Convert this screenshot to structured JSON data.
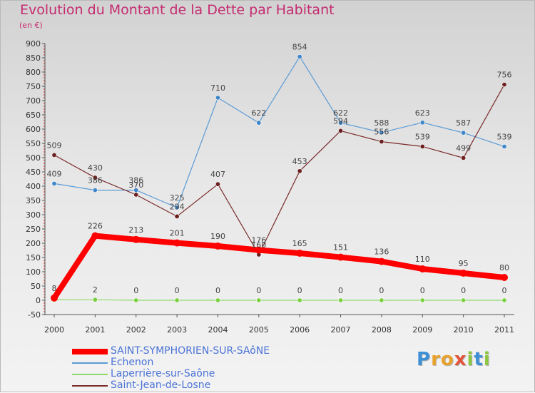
{
  "title": "Evolution du Montant de la Dette par Habitant",
  "subtitle": "(en €)",
  "logo": {
    "letters": [
      {
        "ch": "P",
        "color": "#3d8fd6"
      },
      {
        "ch": "r",
        "color": "#e8a12a"
      },
      {
        "ch": "o",
        "color": "#e8a12a"
      },
      {
        "ch": "x",
        "color": "#e2543a"
      },
      {
        "ch": "i",
        "color": "#8dc63f"
      },
      {
        "ch": "t",
        "color": "#3d8fd6"
      },
      {
        "ch": "i",
        "color": "#8dc63f"
      }
    ]
  },
  "chart_data": {
    "type": "line",
    "title": "Evolution du Montant de la Dette par Habitant",
    "subtitle": "(en €)",
    "xlabel": "",
    "ylabel": "",
    "x": [
      "2000",
      "2001",
      "2002",
      "2003",
      "2004",
      "2005",
      "2006",
      "2007",
      "2008",
      "2009",
      "2010",
      "2011"
    ],
    "ylim": [
      -50,
      900
    ],
    "yticks": [
      -50,
      0,
      50,
      100,
      150,
      200,
      250,
      300,
      350,
      400,
      450,
      500,
      550,
      600,
      650,
      700,
      750,
      800,
      850,
      900
    ],
    "grid": false,
    "legend": "bottom-left",
    "series": [
      {
        "name": "SAINT-SYMPHORIEN-SUR-SAôNE",
        "color": "#ff0000",
        "width": 8,
        "dot": "#ff0000",
        "values": [
          8,
          226,
          213,
          201,
          190,
          176,
          165,
          151,
          136,
          110,
          95,
          80
        ]
      },
      {
        "name": "Echenon",
        "color": "#5b9bd5",
        "width": 1.2,
        "dot": "#3f86c8",
        "values": [
          409,
          386,
          386,
          325,
          710,
          622,
          854,
          622,
          588,
          623,
          587,
          539
        ]
      },
      {
        "name": "Laperrière-sur-Saône",
        "color": "#8fdc6a",
        "width": 1.2,
        "dot": "#7bd040",
        "values": [
          2,
          2,
          0,
          0,
          0,
          0,
          0,
          0,
          0,
          0,
          0,
          0
        ]
      },
      {
        "name": "Saint-Jean-de-Losne",
        "color": "#7a2a2a",
        "width": 1.2,
        "dot": "#6b1f1f",
        "values": [
          509,
          430,
          370,
          294,
          407,
          160,
          453,
          594,
          556,
          539,
          499,
          756
        ]
      }
    ],
    "labels": [
      {
        "series": 1,
        "i": 0,
        "text": "409",
        "pos": "above"
      },
      {
        "series": 1,
        "i": 1,
        "text": "386",
        "pos": "above"
      },
      {
        "series": 1,
        "i": 2,
        "text": "386",
        "pos": "above"
      },
      {
        "series": 1,
        "i": 3,
        "text": "325",
        "pos": "above"
      },
      {
        "series": 1,
        "i": 4,
        "text": "710",
        "pos": "above"
      },
      {
        "series": 1,
        "i": 5,
        "text": "622",
        "pos": "above"
      },
      {
        "series": 1,
        "i": 6,
        "text": "854",
        "pos": "above"
      },
      {
        "series": 1,
        "i": 7,
        "text": "622",
        "pos": "above"
      },
      {
        "series": 1,
        "i": 8,
        "text": "588",
        "pos": "above"
      },
      {
        "series": 1,
        "i": 9,
        "text": "623",
        "pos": "above"
      },
      {
        "series": 1,
        "i": 10,
        "text": "587",
        "pos": "above"
      },
      {
        "series": 1,
        "i": 11,
        "text": "539",
        "pos": "above"
      },
      {
        "series": 3,
        "i": 0,
        "text": "509",
        "pos": "above"
      },
      {
        "series": 3,
        "i": 1,
        "text": "430",
        "pos": "above"
      },
      {
        "series": 3,
        "i": 2,
        "text": "370",
        "pos": "above"
      },
      {
        "series": 3,
        "i": 3,
        "text": "294",
        "pos": "above"
      },
      {
        "series": 3,
        "i": 4,
        "text": "407",
        "pos": "above"
      },
      {
        "series": 3,
        "i": 5,
        "text": "160",
        "pos": "above"
      },
      {
        "series": 3,
        "i": 6,
        "text": "453",
        "pos": "above"
      },
      {
        "series": 3,
        "i": 7,
        "text": "594",
        "pos": "above"
      },
      {
        "series": 3,
        "i": 8,
        "text": "556",
        "pos": "above"
      },
      {
        "series": 3,
        "i": 9,
        "text": "539",
        "pos": "above"
      },
      {
        "series": 3,
        "i": 10,
        "text": "499",
        "pos": "above"
      },
      {
        "series": 3,
        "i": 11,
        "text": "756",
        "pos": "above"
      },
      {
        "series": 0,
        "i": 0,
        "text": "8",
        "pos": "above"
      },
      {
        "series": 0,
        "i": 1,
        "text": "226",
        "pos": "above"
      },
      {
        "series": 0,
        "i": 2,
        "text": "213",
        "pos": "above"
      },
      {
        "series": 0,
        "i": 3,
        "text": "201",
        "pos": "above"
      },
      {
        "series": 0,
        "i": 4,
        "text": "190",
        "pos": "above"
      },
      {
        "series": 0,
        "i": 5,
        "text": "176",
        "pos": "above"
      },
      {
        "series": 0,
        "i": 6,
        "text": "165",
        "pos": "above"
      },
      {
        "series": 0,
        "i": 7,
        "text": "151",
        "pos": "above"
      },
      {
        "series": 0,
        "i": 8,
        "text": "136",
        "pos": "above"
      },
      {
        "series": 0,
        "i": 9,
        "text": "110",
        "pos": "above"
      },
      {
        "series": 0,
        "i": 10,
        "text": "95",
        "pos": "above"
      },
      {
        "series": 0,
        "i": 11,
        "text": "80",
        "pos": "above"
      },
      {
        "series": 2,
        "i": 1,
        "text": "2",
        "pos": "above"
      },
      {
        "series": 2,
        "i": 2,
        "text": "0",
        "pos": "above"
      },
      {
        "series": 2,
        "i": 3,
        "text": "0",
        "pos": "above"
      },
      {
        "series": 2,
        "i": 4,
        "text": "0",
        "pos": "above"
      },
      {
        "series": 2,
        "i": 5,
        "text": "0",
        "pos": "above"
      },
      {
        "series": 2,
        "i": 6,
        "text": "0",
        "pos": "above"
      },
      {
        "series": 2,
        "i": 7,
        "text": "0",
        "pos": "above"
      },
      {
        "series": 2,
        "i": 8,
        "text": "0",
        "pos": "above"
      },
      {
        "series": 2,
        "i": 9,
        "text": "0",
        "pos": "above"
      },
      {
        "series": 2,
        "i": 10,
        "text": "0",
        "pos": "above"
      },
      {
        "series": 2,
        "i": 11,
        "text": "0",
        "pos": "above"
      }
    ]
  }
}
